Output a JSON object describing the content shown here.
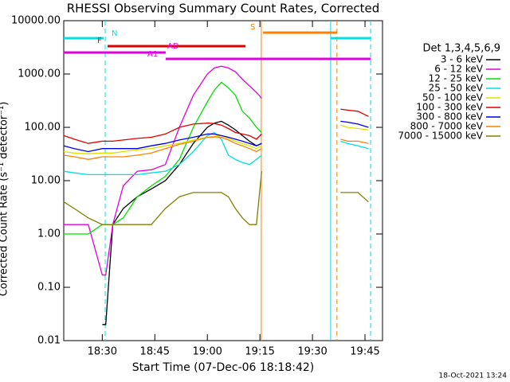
{
  "chart_data": {
    "type": "line",
    "title": "RHESSI Observing Summary Count Rates, Corrected",
    "x_label": "Start Time (07-Dec-06 18:18:42)",
    "y_label": "Corrected Count Rate (s⁻¹ detector⁻¹)",
    "footer": "18-Oct-2021 13:24",
    "legend_title": "Det 1,3,4,5,6,9",
    "log_y": true,
    "xlim": [
      19,
      110
    ],
    "xticks": [
      {
        "value": 30,
        "label": "18:30"
      },
      {
        "value": 45,
        "label": "18:45"
      },
      {
        "value": 60,
        "label": "19:00"
      },
      {
        "value": 75,
        "label": "19:15"
      },
      {
        "value": 90,
        "label": "19:30"
      },
      {
        "value": 105,
        "label": "19:45"
      }
    ],
    "ylim": [
      0.01,
      10000
    ],
    "yticks": [
      {
        "value": 0.01,
        "label": "0.01"
      },
      {
        "value": 0.1,
        "label": "0.10"
      },
      {
        "value": 1,
        "label": "1.00"
      },
      {
        "value": 10,
        "label": "10.00"
      },
      {
        "value": 100,
        "label": "100.00"
      },
      {
        "value": 1000,
        "label": "1000.00"
      },
      {
        "value": 10000,
        "label": "10000.00"
      }
    ],
    "x": [
      19,
      22,
      26,
      30,
      31,
      33,
      36,
      40,
      44,
      48,
      52,
      56,
      60,
      62,
      64,
      66,
      68,
      70,
      72,
      74,
      75.5,
      85,
      98,
      100,
      103,
      106
    ],
    "series": [
      {
        "name": "3 - 6 keV",
        "color": "#000000",
        "values": [
          null,
          null,
          null,
          0.02,
          0.02,
          1.5,
          3,
          5,
          7,
          10,
          20,
          50,
          100,
          120,
          130,
          110,
          90,
          70,
          55,
          45,
          50,
          null,
          null,
          null,
          null,
          null
        ]
      },
      {
        "name": "6 - 12 keV",
        "color": "#e000e0",
        "values": [
          1.5,
          1.5,
          1.5,
          0.17,
          0.17,
          1.5,
          8,
          15,
          16,
          20,
          100,
          400,
          1000,
          1300,
          1400,
          1300,
          1100,
          800,
          600,
          450,
          350,
          null,
          null,
          null,
          null,
          null
        ]
      },
      {
        "name": "12 - 25 keV",
        "color": "#00e000",
        "values": [
          1,
          1,
          1,
          1.5,
          1.5,
          1.5,
          2,
          5,
          8,
          12,
          25,
          100,
          300,
          500,
          700,
          550,
          400,
          200,
          150,
          100,
          80,
          null,
          null,
          null,
          null,
          null
        ]
      },
      {
        "name": "25 - 50 keV",
        "color": "#00e0e0",
        "values": [
          15,
          14,
          13,
          13,
          13,
          13,
          13,
          13,
          14,
          15,
          20,
          35,
          70,
          80,
          60,
          30,
          25,
          22,
          20,
          25,
          30,
          null,
          55,
          50,
          45,
          40
        ]
      },
      {
        "name": "50 - 100 keV",
        "color": "#e0e000",
        "values": [
          35,
          33,
          32,
          33,
          33,
          33,
          35,
          38,
          40,
          45,
          50,
          58,
          65,
          68,
          70,
          62,
          55,
          50,
          45,
          40,
          45,
          null,
          110,
          100,
          95,
          90
        ]
      },
      {
        "name": "100 - 300 keV",
        "color": "#e00000",
        "values": [
          70,
          60,
          50,
          55,
          55,
          55,
          58,
          62,
          65,
          75,
          100,
          115,
          120,
          118,
          110,
          95,
          80,
          75,
          70,
          60,
          75,
          null,
          220,
          210,
          200,
          160
        ]
      },
      {
        "name": "300 - 800 keV",
        "color": "#0000e0",
        "values": [
          45,
          40,
          35,
          40,
          40,
          40,
          40,
          40,
          45,
          50,
          58,
          65,
          75,
          75,
          70,
          65,
          60,
          55,
          50,
          45,
          50,
          null,
          130,
          125,
          115,
          100
        ]
      },
      {
        "name": "800 - 7000 keV",
        "color": "#ff8000",
        "values": [
          30,
          28,
          25,
          28,
          28,
          28,
          28,
          30,
          33,
          40,
          48,
          55,
          65,
          66,
          65,
          58,
          50,
          45,
          40,
          35,
          40,
          null,
          60,
          55,
          55,
          50
        ]
      },
      {
        "name": "7000 - 15000 keV",
        "color": "#808000",
        "values": [
          4,
          3,
          2,
          1.5,
          1.5,
          1.5,
          1.5,
          1.5,
          1.5,
          3,
          5,
          6,
          6,
          6,
          6,
          5,
          3,
          2,
          1.5,
          1.5,
          15,
          null,
          6,
          6,
          6,
          4
        ]
      }
    ],
    "flags": [
      {
        "label": "N",
        "color": "#00e0e0",
        "spans": [
          [
            19,
            30.4
          ],
          [
            95.2,
            106.6
          ]
        ]
      },
      {
        "label": "F",
        "color": "#e00000",
        "spans": [
          [
            31.5,
            70.9
          ]
        ]
      },
      {
        "label": "AD",
        "color": "#e000e0",
        "spans": [
          [
            19,
            48.1
          ]
        ]
      },
      {
        "label": "A1",
        "color": "#e000e0",
        "spans": [
          [
            48.1,
            106.6
          ]
        ]
      },
      {
        "label": "S",
        "color": "#ff8000",
        "spans": [
          [
            75.9,
            97.0
          ]
        ]
      }
    ],
    "vlines": [
      {
        "x": 30.83,
        "color": "#00e0e0",
        "dashed": true
      },
      {
        "x": 75.4,
        "color": "#ff8000",
        "dashed": false
      },
      {
        "x": 95.2,
        "color": "#00e0e0",
        "dashed": false
      },
      {
        "x": 97.0,
        "color": "#ff8000",
        "dashed": true
      },
      {
        "x": 106.6,
        "color": "#00e0e0",
        "dashed": true
      }
    ]
  }
}
